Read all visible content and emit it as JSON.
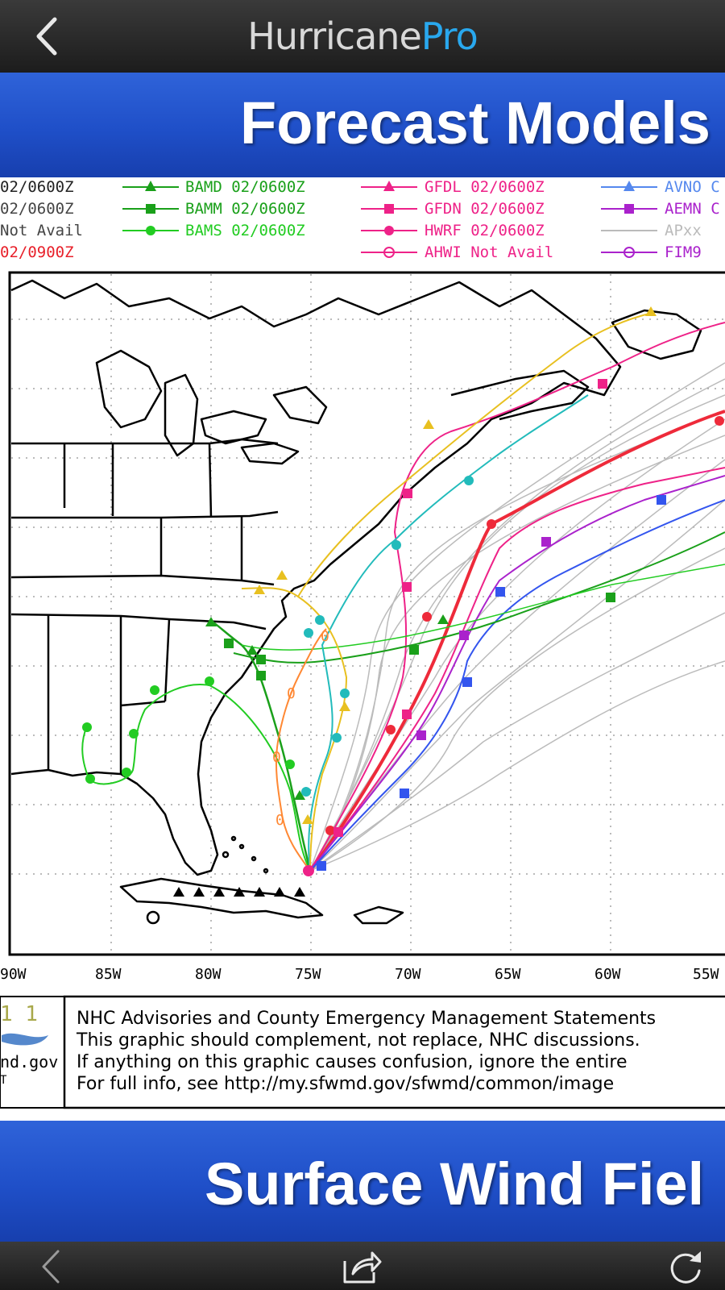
{
  "app": {
    "title_part1": "Hurricane",
    "title_part2": "Pro",
    "title_color_1": "#d8d8d8",
    "title_color_2": "#29a8ee"
  },
  "sections": {
    "forecast_models": "Forecast Models",
    "surface_wind": "Surface Wind Fiel"
  },
  "legend": {
    "col1": [
      "02/0600Z",
      "02/0600Z",
      "Not Avail",
      "02/0900Z"
    ],
    "col2": [
      {
        "name": "BAMD",
        "value": "02/0600Z",
        "color": "#1aa01a",
        "marker": "triangle"
      },
      {
        "name": "BAMM",
        "value": "02/0600Z",
        "color": "#1aa01a",
        "marker": "square"
      },
      {
        "name": "BAMS",
        "value": "02/0600Z",
        "color": "#22cc22",
        "marker": "circle"
      }
    ],
    "col3": [
      {
        "name": "GFDL",
        "value": "02/0600Z",
        "color": "#ee2288",
        "marker": "triangle"
      },
      {
        "name": "GFDN",
        "value": "02/0600Z",
        "color": "#ee2288",
        "marker": "square"
      },
      {
        "name": "HWRF",
        "value": "02/0600Z",
        "color": "#ee2288",
        "marker": "circle"
      },
      {
        "name": "AHWI",
        "value": "Not Avail",
        "color": "#ee2288",
        "marker": "theta"
      }
    ],
    "col4": [
      {
        "name": "AVNO",
        "value": "C",
        "color": "#5588ee",
        "marker": "triangle"
      },
      {
        "name": "AEMN",
        "value": "C",
        "color": "#aa22cc",
        "marker": "square"
      },
      {
        "name": "APxx",
        "value": "",
        "color": "#bbbbbb",
        "marker": "none"
      },
      {
        "name": "FIM9",
        "value": "",
        "color": "#aa22cc",
        "marker": "theta"
      }
    ]
  },
  "map": {
    "lon_labels": [
      "90W",
      "85W",
      "80W",
      "75W",
      "70W",
      "65W",
      "60W",
      "55W"
    ]
  },
  "footer": {
    "logo_text": "1 1",
    "logo_url": "nd.gov",
    "logo_sub": "T",
    "lines": [
      "NHC Advisories and County Emergency Management Statements",
      "This graphic should complement, not replace, NHC discussions.",
      "If anything on this graphic causes confusion, ignore the entire",
      "For full info, see  http://my.sfwmd.gov/sfwmd/common/image"
    ]
  },
  "icons": {
    "nav_back": "chevron-left-icon",
    "toolbar_back": "arrow-left-icon",
    "share": "share-icon",
    "refresh": "refresh-icon"
  }
}
